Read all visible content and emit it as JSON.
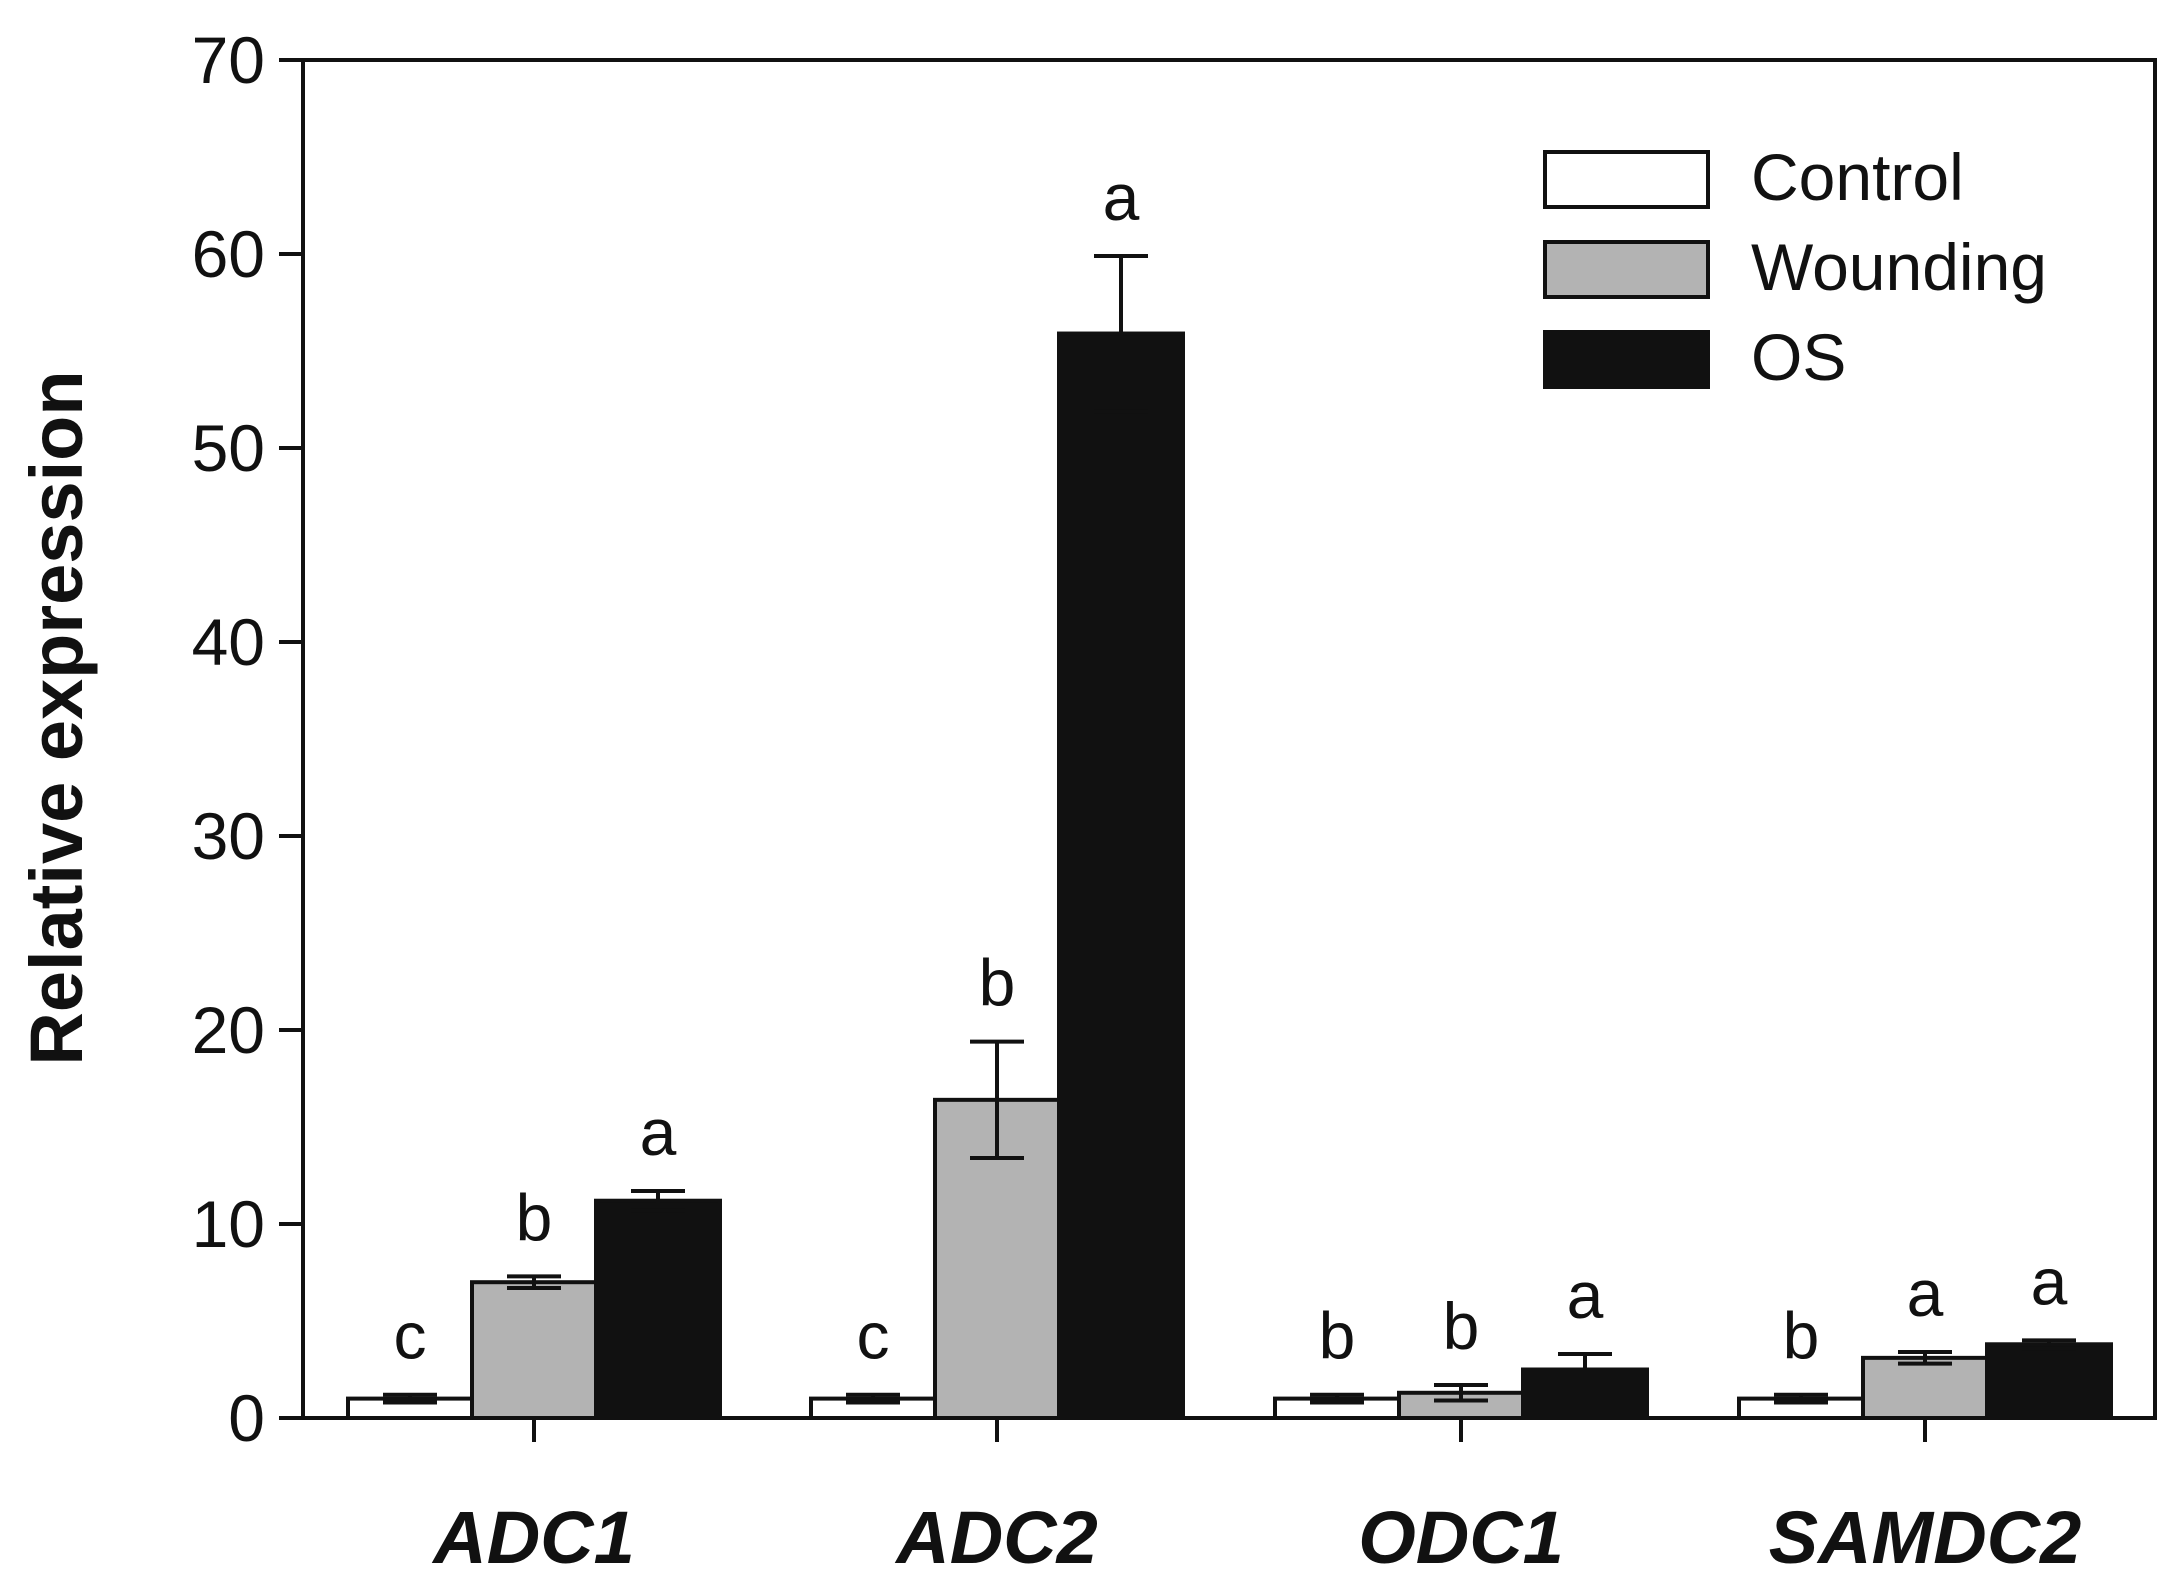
{
  "chart_data": {
    "type": "bar",
    "title": "",
    "xlabel": "",
    "ylabel": "Relative expression",
    "ylim": [
      0,
      70
    ],
    "yticks": [
      0,
      10,
      20,
      30,
      40,
      50,
      60,
      70
    ],
    "grid": false,
    "legend_position": "top-right",
    "categories": [
      "ADC1",
      "ADC2",
      "ODC1",
      "SAMDC2"
    ],
    "series": [
      {
        "name": "Control",
        "color": "#ffffff",
        "values": [
          1.0,
          1.0,
          1.0,
          1.0
        ],
        "errors": [
          0.2,
          0.2,
          0.2,
          0.2
        ],
        "letters": [
          "c",
          "c",
          "b",
          "b"
        ]
      },
      {
        "name": "Wounding",
        "color": "#b3b3b3",
        "values": [
          7.0,
          16.4,
          1.3,
          3.1
        ],
        "errors": [
          0.3,
          3.0,
          0.4,
          0.3
        ],
        "letters": [
          "b",
          "b",
          "b",
          "a"
        ]
      },
      {
        "name": "OS",
        "color": "#111111",
        "values": [
          11.2,
          55.9,
          2.5,
          3.8
        ],
        "errors": [
          0.5,
          4.0,
          0.8,
          0.2
        ],
        "letters": [
          "a",
          "a",
          "a",
          "a"
        ]
      }
    ]
  }
}
